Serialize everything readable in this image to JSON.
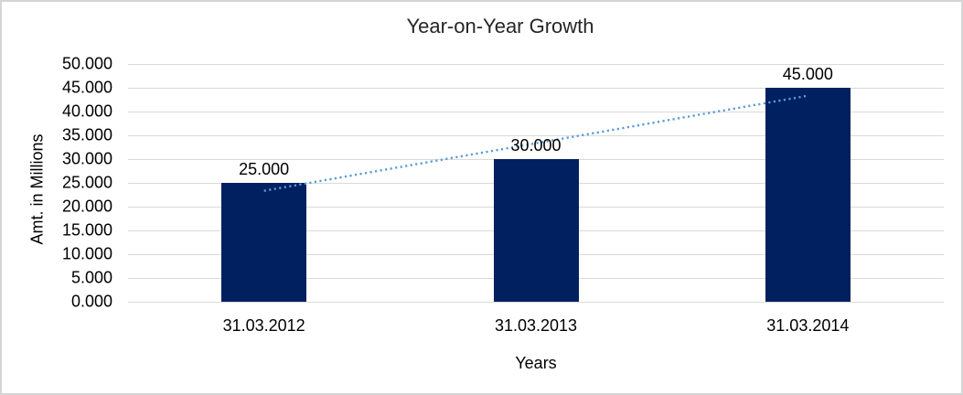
{
  "window": {
    "background": "#ffffff",
    "border_color": "#d5d5d5"
  },
  "chart_data": {
    "type": "bar",
    "title": "Year-on-Year Growth",
    "xlabel": "Years",
    "ylabel": "Amt. in Millions",
    "categories": [
      "31.03.2012",
      "31.03.2013",
      "31.03.2014"
    ],
    "values": [
      25,
      30,
      45
    ],
    "data_labels": [
      "25.000",
      "30.000",
      "45.000"
    ],
    "ylim": [
      0,
      50
    ],
    "y_ticks": [
      {
        "value": 0,
        "label": "0.000"
      },
      {
        "value": 5,
        "label": "5.000"
      },
      {
        "value": 10,
        "label": "10.000"
      },
      {
        "value": 15,
        "label": "15.000"
      },
      {
        "value": 20,
        "label": "20.000"
      },
      {
        "value": 25,
        "label": "25.000"
      },
      {
        "value": 30,
        "label": "30.000"
      },
      {
        "value": 35,
        "label": "35.000"
      },
      {
        "value": 40,
        "label": "40.000"
      },
      {
        "value": 45,
        "label": "45.000"
      },
      {
        "value": 50,
        "label": "50.000"
      }
    ],
    "grid": true,
    "legend": "none",
    "colors": {
      "bar": "#002060",
      "trendline": "#5b9bd5",
      "gridline": "#d9d9d9",
      "text": "#000000"
    },
    "trendline": {
      "type": "linear",
      "line_style": "dotted",
      "values_at_categories": [
        23.33,
        33.33,
        43.33
      ]
    }
  }
}
